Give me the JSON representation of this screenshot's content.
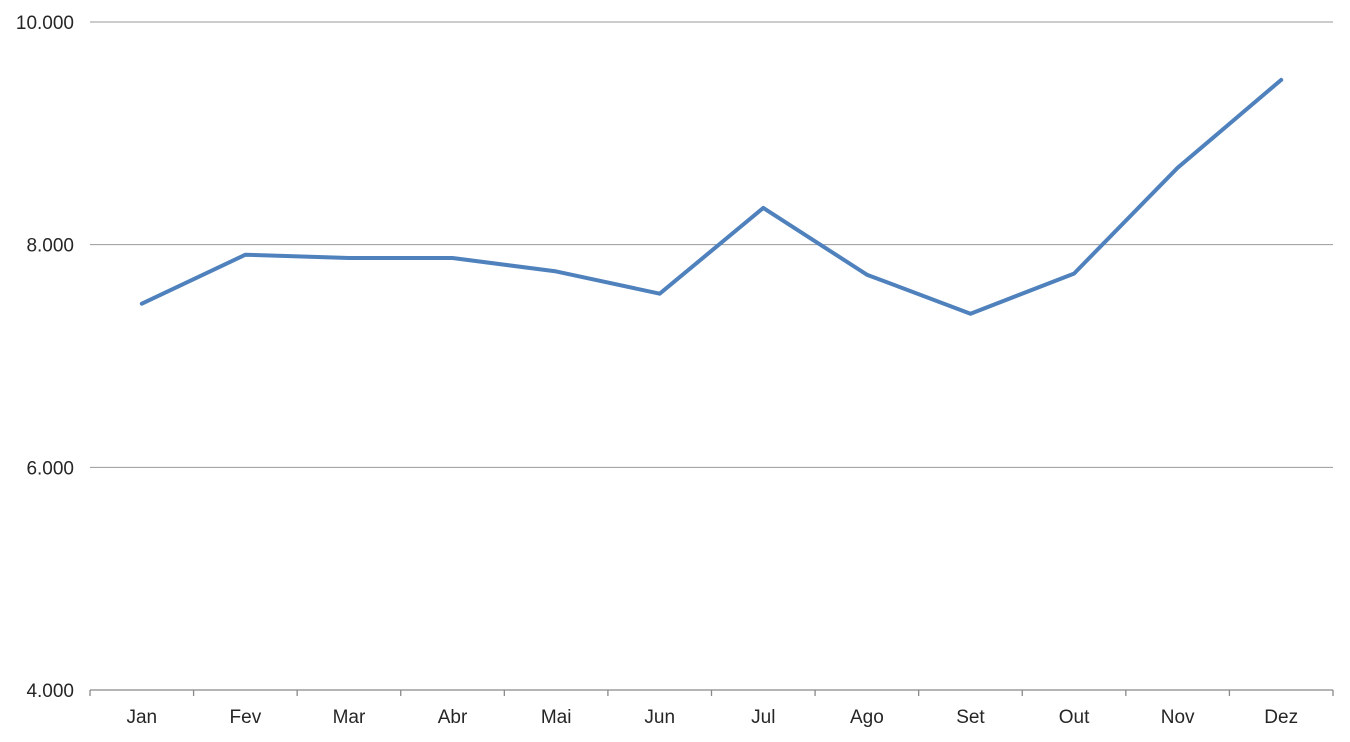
{
  "chart_data": {
    "type": "line",
    "title": "",
    "xlabel": "",
    "ylabel": "",
    "categories": [
      "Jan",
      "Fev",
      "Mar",
      "Abr",
      "Mai",
      "Jun",
      "Jul",
      "Ago",
      "Set",
      "Out",
      "Nov",
      "Dez"
    ],
    "values": [
      7470,
      7910,
      7880,
      7880,
      7760,
      7560,
      8330,
      7730,
      7380,
      7740,
      8690,
      9480
    ],
    "ylim": [
      4000,
      10000
    ],
    "y_ticks": [
      {
        "value": 4000,
        "label": "4.000"
      },
      {
        "value": 6000,
        "label": "6.000"
      },
      {
        "value": 8000,
        "label": "8.000"
      },
      {
        "value": 10000,
        "label": "10.000"
      }
    ],
    "grid": true,
    "legend": false,
    "legend_position": "none",
    "colors": {
      "line": "#4F81BD",
      "gridline": "#999999",
      "axis": "#898989",
      "text": "#262626",
      "background": "#FFFFFF"
    }
  }
}
